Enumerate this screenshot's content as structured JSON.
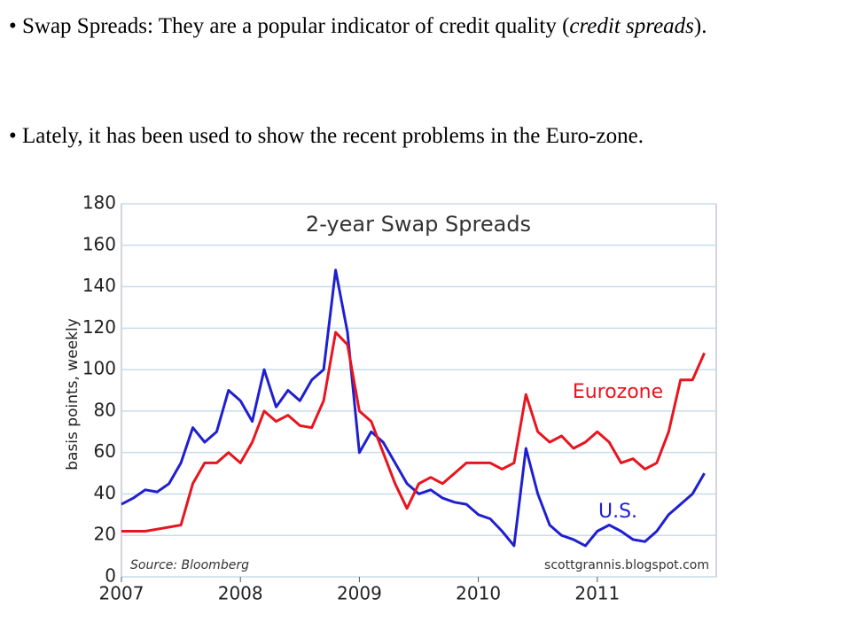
{
  "bullets": [
    {
      "parts": [
        "• Swap Spreads: They are a popular indicator of credit quality (",
        "credit spreads",
        ")."
      ]
    },
    {
      "parts": [
        "• Lately, it has been used to show the recent problems in the Euro-zone."
      ]
    }
  ],
  "chart_data": {
    "type": "line",
    "title": "2-year Swap Spreads",
    "y_label": "basis points, weekly",
    "source": "Source: Bloomberg",
    "credit": "scottgrannis.blogspot.com",
    "x": [
      2007.0,
      2007.1,
      2007.2,
      2007.3,
      2007.4,
      2007.5,
      2007.6,
      2007.7,
      2007.8,
      2007.9,
      2008.0,
      2008.1,
      2008.2,
      2008.3,
      2008.4,
      2008.5,
      2008.6,
      2008.7,
      2008.8,
      2008.9,
      2009.0,
      2009.1,
      2009.2,
      2009.3,
      2009.4,
      2009.5,
      2009.6,
      2009.7,
      2009.8,
      2009.9,
      2010.0,
      2010.1,
      2010.2,
      2010.3,
      2010.4,
      2010.5,
      2010.6,
      2010.7,
      2010.8,
      2010.9,
      2011.0,
      2011.1,
      2011.2,
      2011.3,
      2011.4,
      2011.5,
      2011.6,
      2011.7,
      2011.8,
      2011.9
    ],
    "series": [
      {
        "name": "U.S.",
        "color": "#1f1fd0",
        "values": [
          35,
          38,
          42,
          41,
          45,
          55,
          72,
          65,
          70,
          90,
          85,
          75,
          100,
          82,
          90,
          85,
          95,
          100,
          148,
          118,
          60,
          70,
          65,
          55,
          45,
          40,
          42,
          38,
          36,
          35,
          30,
          28,
          22,
          15,
          62,
          40,
          25,
          20,
          18,
          15,
          22,
          25,
          22,
          18,
          17,
          22,
          30,
          35,
          40,
          50
        ]
      },
      {
        "name": "Eurozone",
        "color": "#e8141e",
        "values": [
          22,
          22,
          22,
          23,
          24,
          25,
          45,
          55,
          55,
          60,
          55,
          65,
          80,
          75,
          78,
          73,
          72,
          85,
          118,
          112,
          80,
          75,
          60,
          45,
          33,
          45,
          48,
          45,
          50,
          55,
          55,
          55,
          52,
          55,
          88,
          70,
          65,
          68,
          62,
          65,
          70,
          65,
          55,
          57,
          52,
          55,
          70,
          95,
          95,
          108
        ]
      }
    ],
    "xlim": [
      2007,
      2012
    ],
    "xticks": [
      2007,
      2008,
      2009,
      2010,
      2011
    ],
    "ylim": [
      0,
      180
    ],
    "yticks": [
      0,
      20,
      40,
      60,
      80,
      100,
      120,
      140,
      160,
      180
    ],
    "grid": true
  }
}
